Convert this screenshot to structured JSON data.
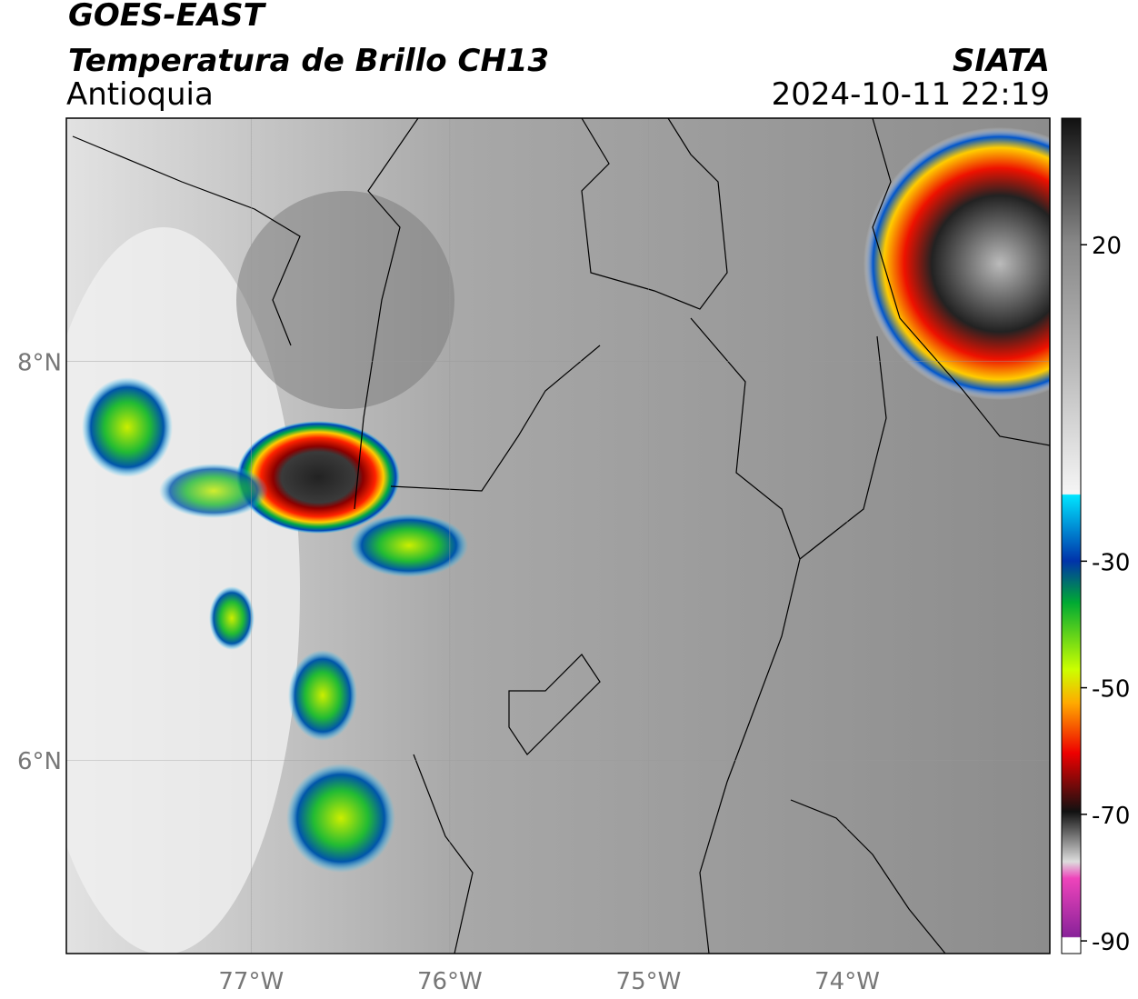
{
  "header": {
    "title": "GOES-EAST",
    "subtitle": "Temperatura de Brillo CH13",
    "region": "Antioquia",
    "source": "SIATA",
    "datetime": "2024-10-11 22:19"
  },
  "map": {
    "xlim": [
      -77.93,
      -72.98
    ],
    "ylim": [
      5.03,
      9.22
    ],
    "xticks": [
      {
        "value": -77,
        "label": "77°W"
      },
      {
        "value": -76,
        "label": "76°W"
      },
      {
        "value": -75,
        "label": "75°W"
      },
      {
        "value": -74,
        "label": "74°W"
      }
    ],
    "yticks": [
      {
        "value": 8,
        "label": "8°N"
      },
      {
        "value": 6,
        "label": "6°N"
      }
    ]
  },
  "colorbar": {
    "lim": [
      -92,
      40
    ],
    "ticks": [
      20,
      -30,
      -50,
      -70,
      -90
    ]
  }
}
